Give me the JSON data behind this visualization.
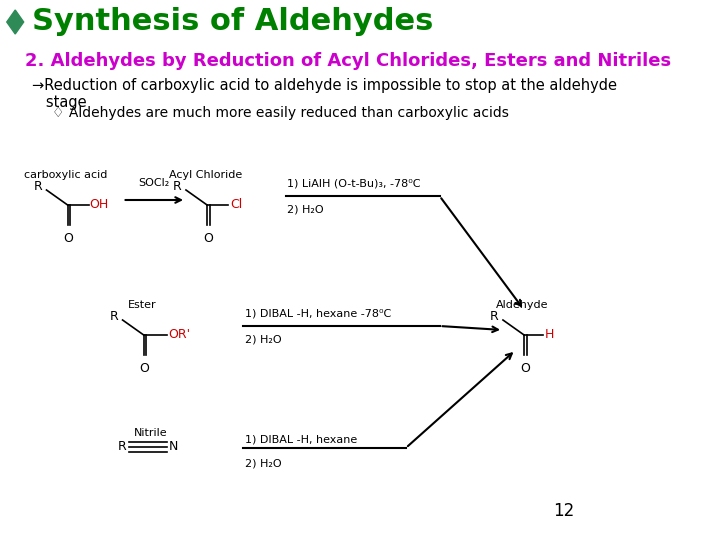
{
  "bg_color": "#ffffff",
  "title_diamond_color": "#2e8b57",
  "title_text": "Synthesis of Aldehydes",
  "title_color": "#008000",
  "title_fontsize": 22,
  "subtitle_text": "2. Aldehydes by Reduction of Acyl Chlorides, Esters and Nitriles",
  "subtitle_color": "#cc00cc",
  "subtitle_fontsize": 13,
  "bullet1_text": "→Reduction of carboxylic acid to aldehyde is impossible to stop at the aldehyde\n   stage",
  "bullet1_color": "#000000",
  "bullet1_fontsize": 10.5,
  "bullet2_prefix": "♢ ",
  "bullet2_text": "Aldehydes are much more easily reduced than carboxylic acids",
  "bullet2_color": "#000000",
  "bullet2_fontsize": 10,
  "page_number": "12",
  "page_color": "#000000",
  "page_fontsize": 12,
  "arrow_color": "#000000",
  "red_color": "#cc0000",
  "struct_color": "#000000"
}
